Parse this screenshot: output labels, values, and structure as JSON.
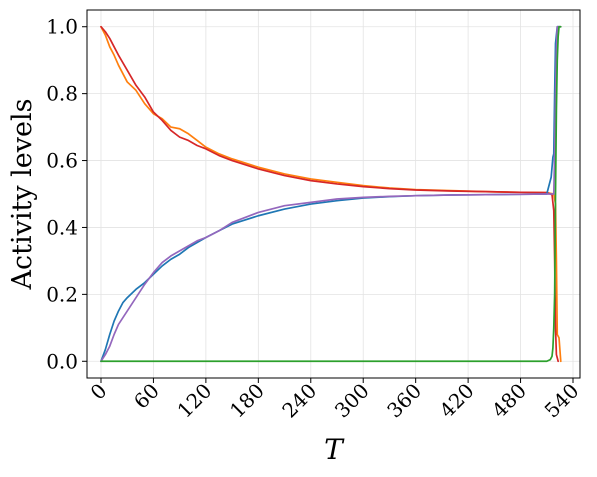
{
  "chart_data": {
    "type": "line",
    "title": "",
    "xlabel": "T",
    "ylabel": "Activity levels",
    "xlim": [
      -16,
      548
    ],
    "ylim": [
      -0.05,
      1.05
    ],
    "x_ticks": [
      0,
      60,
      120,
      180,
      240,
      300,
      360,
      420,
      480,
      540
    ],
    "y_ticks": [
      0.0,
      0.2,
      0.4,
      0.6,
      0.8,
      1.0
    ],
    "x_tick_labels": [
      "0",
      "60",
      "120",
      "180",
      "240",
      "300",
      "360",
      "420",
      "480",
      "540"
    ],
    "y_tick_labels": [
      "0.0",
      "0.2",
      "0.4",
      "0.6",
      "0.8",
      "1.0"
    ],
    "grid": true,
    "legend": false,
    "series": [
      {
        "color": "#ff7f0e",
        "x": [
          0,
          5,
          10,
          15,
          20,
          30,
          40,
          50,
          60,
          70,
          80,
          90,
          100,
          110,
          120,
          135,
          150,
          180,
          210,
          240,
          270,
          300,
          330,
          360,
          400,
          440,
          480,
          510,
          518,
          520,
          521,
          522,
          524,
          526
        ],
        "y": [
          1.0,
          0.975,
          0.94,
          0.915,
          0.885,
          0.835,
          0.81,
          0.77,
          0.74,
          0.725,
          0.7,
          0.695,
          0.68,
          0.66,
          0.64,
          0.62,
          0.605,
          0.58,
          0.56,
          0.545,
          0.535,
          0.525,
          0.518,
          0.513,
          0.51,
          0.507,
          0.505,
          0.504,
          0.5,
          0.47,
          0.3,
          0.08,
          0.07,
          0.0
        ]
      },
      {
        "color": "#d62728",
        "x": [
          0,
          5,
          10,
          15,
          20,
          30,
          40,
          50,
          60,
          70,
          80,
          90,
          100,
          110,
          120,
          135,
          150,
          180,
          210,
          240,
          270,
          300,
          330,
          360,
          400,
          440,
          480,
          510,
          516,
          518,
          519,
          520,
          521,
          523
        ],
        "y": [
          1.0,
          0.985,
          0.965,
          0.94,
          0.915,
          0.87,
          0.825,
          0.79,
          0.745,
          0.72,
          0.69,
          0.67,
          0.66,
          0.645,
          0.635,
          0.615,
          0.6,
          0.575,
          0.555,
          0.54,
          0.53,
          0.522,
          0.516,
          0.512,
          0.509,
          0.507,
          0.505,
          0.504,
          0.498,
          0.45,
          0.3,
          0.1,
          0.02,
          0.0
        ]
      },
      {
        "color": "#1f77b4",
        "x": [
          0,
          5,
          10,
          15,
          20,
          25,
          30,
          40,
          50,
          60,
          70,
          80,
          90,
          100,
          110,
          120,
          135,
          150,
          180,
          210,
          240,
          270,
          300,
          330,
          360,
          400,
          440,
          480,
          510,
          515,
          517,
          518,
          519,
          520,
          522,
          524
        ],
        "y": [
          0.0,
          0.035,
          0.08,
          0.12,
          0.15,
          0.175,
          0.19,
          0.215,
          0.235,
          0.26,
          0.285,
          0.305,
          0.32,
          0.34,
          0.355,
          0.37,
          0.39,
          0.41,
          0.435,
          0.455,
          0.47,
          0.48,
          0.488,
          0.492,
          0.495,
          0.497,
          0.498,
          0.499,
          0.5,
          0.55,
          0.61,
          0.62,
          0.8,
          0.95,
          1.0,
          1.0
        ]
      },
      {
        "color": "#9467bd",
        "x": [
          0,
          5,
          10,
          15,
          20,
          30,
          40,
          50,
          60,
          70,
          80,
          90,
          100,
          110,
          120,
          135,
          150,
          180,
          210,
          240,
          270,
          300,
          330,
          360,
          400,
          440,
          480,
          510,
          518,
          519,
          520,
          521,
          522,
          524,
          526
        ],
        "y": [
          0.0,
          0.02,
          0.045,
          0.08,
          0.11,
          0.15,
          0.19,
          0.23,
          0.265,
          0.295,
          0.315,
          0.33,
          0.345,
          0.36,
          0.37,
          0.39,
          0.415,
          0.445,
          0.465,
          0.475,
          0.485,
          0.49,
          0.493,
          0.495,
          0.497,
          0.498,
          0.499,
          0.5,
          0.5,
          0.62,
          0.8,
          0.93,
          1.0,
          1.0,
          1.0
        ]
      },
      {
        "color": "#2ca02c",
        "x": [
          0,
          100,
          200,
          300,
          400,
          500,
          510,
          514,
          516,
          517,
          518,
          519,
          520,
          521,
          522,
          523,
          524,
          526
        ],
        "y": [
          0.0,
          0.0,
          0.0,
          0.0,
          0.0,
          0.0,
          0.0,
          0.005,
          0.015,
          0.04,
          0.1,
          0.2,
          0.5,
          0.75,
          0.9,
          0.97,
          1.0,
          1.0
        ]
      }
    ]
  }
}
